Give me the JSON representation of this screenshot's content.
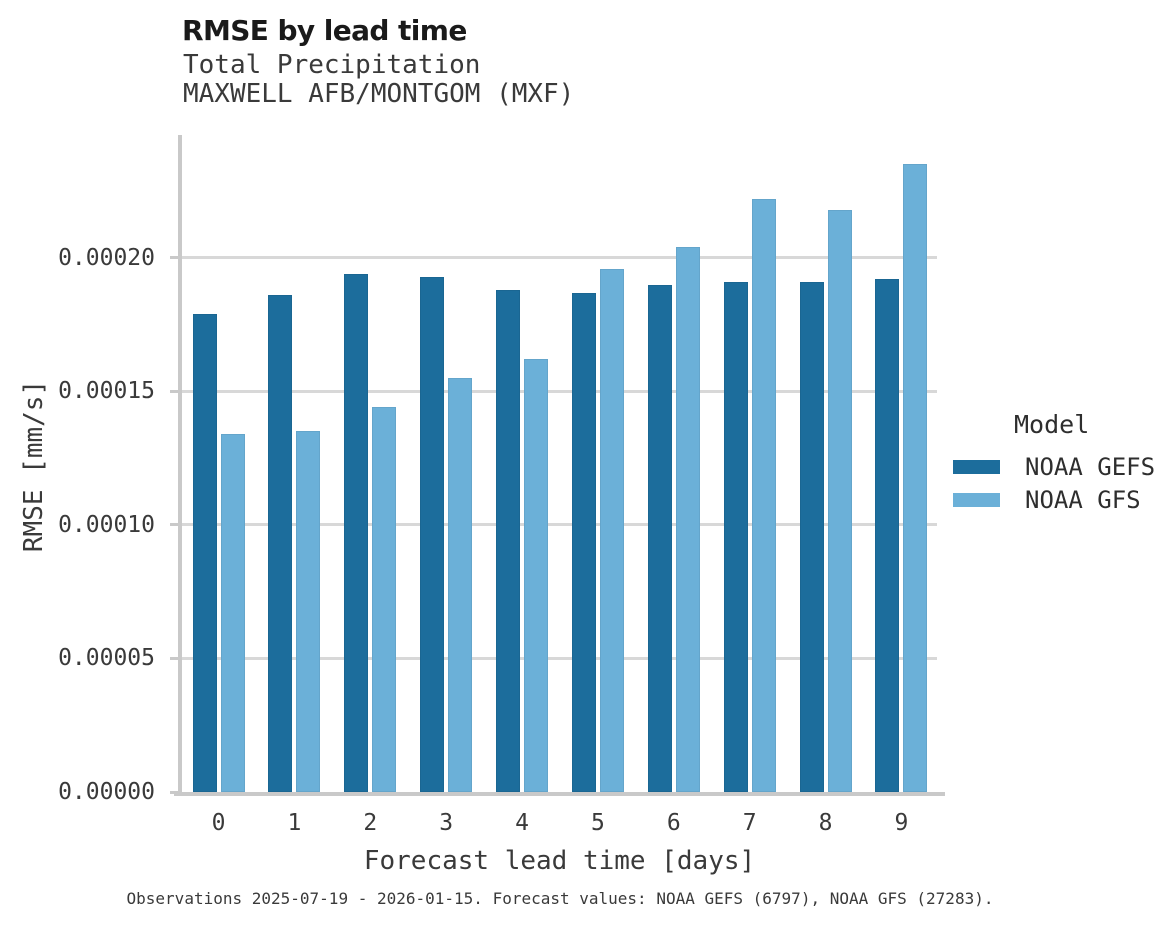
{
  "header": {
    "title": "RMSE by lead time",
    "subtitle1": "Total Precipitation",
    "subtitle2": "MAXWELL AFB/MONTGOM (MXF)"
  },
  "chart_data": {
    "type": "bar",
    "title": "RMSE by lead time",
    "subtitle": [
      "Total Precipitation",
      "MAXWELL AFB/MONTGOM (MXF)"
    ],
    "categories": [
      "0",
      "1",
      "2",
      "3",
      "4",
      "5",
      "6",
      "7",
      "8",
      "9"
    ],
    "series": [
      {
        "name": "NOAA GEFS",
        "color": "#1c6d9c",
        "values": [
          0.000179,
          0.000186,
          0.000194,
          0.000193,
          0.000188,
          0.000187,
          0.00019,
          0.000191,
          0.000191,
          0.000192
        ]
      },
      {
        "name": "NOAA GFS",
        "color": "#6bb0d8",
        "values": [
          0.000134,
          0.000135,
          0.000144,
          0.000155,
          0.000162,
          0.000196,
          0.000204,
          0.000222,
          0.000218,
          0.000235
        ]
      }
    ],
    "xlabel": "Forecast lead time [days]",
    "ylabel": "RMSE [mm/s]",
    "ylim": [
      0,
      0.000246
    ],
    "yticks": [
      0,
      5e-05,
      0.0001,
      0.00015,
      0.0002
    ],
    "ytick_labels": [
      "0.00000",
      "0.00005",
      "0.00010",
      "0.00015",
      "0.00020"
    ],
    "grid": true,
    "legend_title": "Model",
    "legend_position": "right-center",
    "grid_color": "#d8d8d8",
    "spine_color": "#c9c9c9"
  },
  "caption": {
    "text": "Observations 2025-07-19 - 2026-01-15. Forecast values: NOAA GEFS (6797), NOAA GFS (27283)."
  }
}
